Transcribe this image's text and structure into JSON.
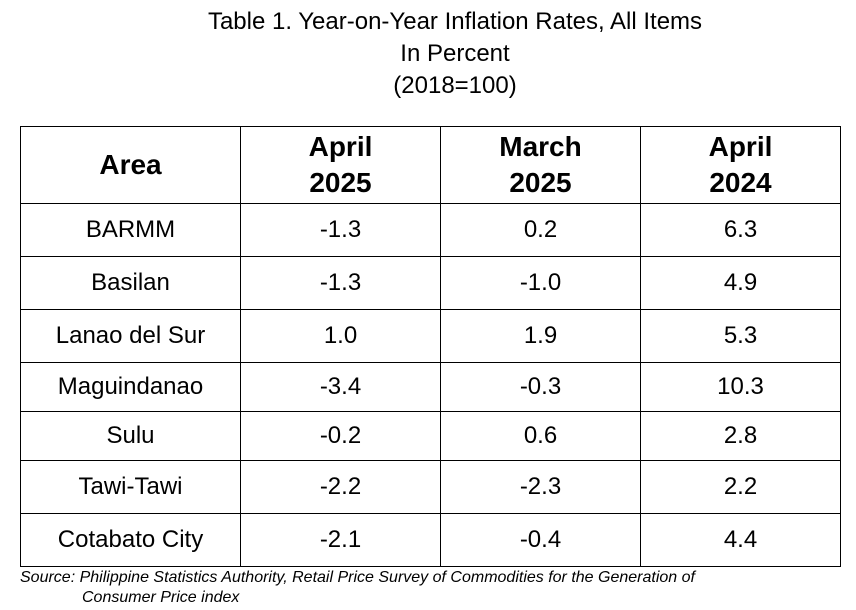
{
  "title": {
    "line1": "Table 1. Year-on-Year Inflation Rates, All Items",
    "line2": "In Percent",
    "line3": "(2018=100)"
  },
  "table": {
    "headers": [
      {
        "line1": "Area",
        "line2": ""
      },
      {
        "line1": "April",
        "line2": "2025"
      },
      {
        "line1": "March",
        "line2": "2025"
      },
      {
        "line1": "April",
        "line2": "2024"
      }
    ],
    "rows": [
      {
        "area": "BARMM",
        "apr2025": "-1.3",
        "mar2025": "0.2",
        "apr2024": "6.3"
      },
      {
        "area": "Basilan",
        "apr2025": "-1.3",
        "mar2025": "-1.0",
        "apr2024": "4.9"
      },
      {
        "area": "Lanao del Sur",
        "apr2025": "1.0",
        "mar2025": "1.9",
        "apr2024": "5.3"
      },
      {
        "area": "Maguindanao",
        "apr2025": "-3.4",
        "mar2025": "-0.3",
        "apr2024": "10.3"
      },
      {
        "area": "Sulu",
        "apr2025": "-0.2",
        "mar2025": "0.6",
        "apr2024": "2.8"
      },
      {
        "area": "Tawi-Tawi",
        "apr2025": "-2.2",
        "mar2025": "-2.3",
        "apr2024": "2.2"
      },
      {
        "area": "Cotabato City",
        "apr2025": "-2.1",
        "mar2025": "-0.4",
        "apr2024": "4.4"
      }
    ]
  },
  "source": {
    "line1": "Source: Philippine Statistics Authority, Retail Price Survey of Commodities for the Generation of",
    "line2": "Consumer Price index"
  }
}
